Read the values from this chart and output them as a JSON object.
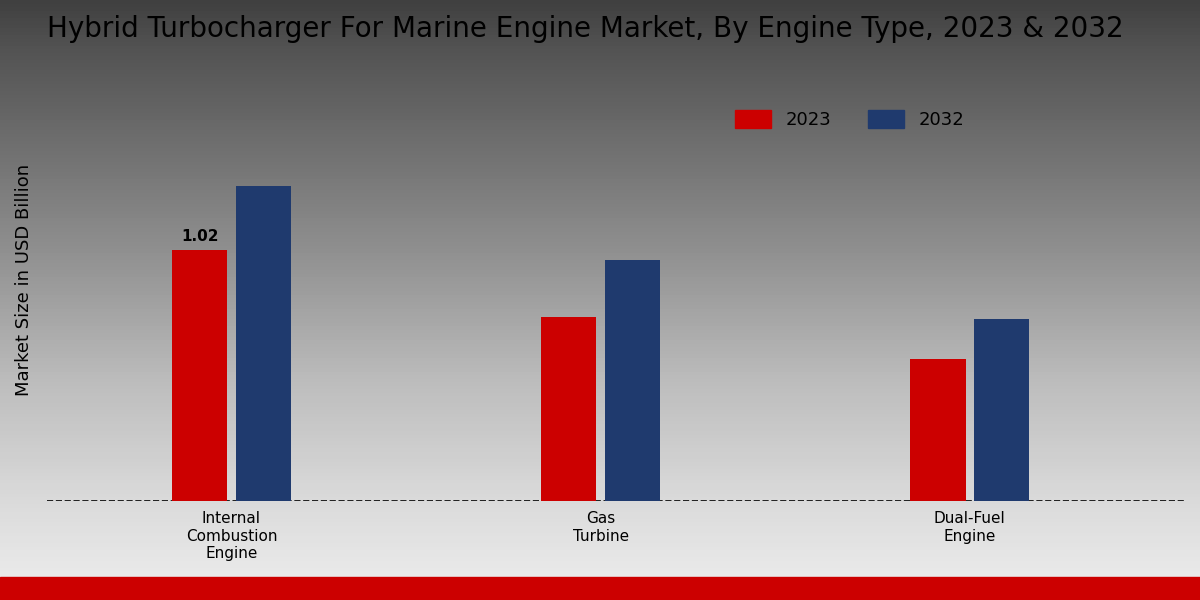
{
  "title": "Hybrid Turbocharger For Marine Engine Market, By Engine Type, 2023 & 2032",
  "ylabel": "Market Size in USD Billion",
  "categories": [
    "Internal\nCombustion\nEngine",
    "Gas\nTurbine",
    "Dual-Fuel\nEngine"
  ],
  "values_2023": [
    1.02,
    0.75,
    0.58
  ],
  "values_2032": [
    1.28,
    0.98,
    0.74
  ],
  "color_2023": "#cc0000",
  "color_2032": "#1f3a6e",
  "bar_width": 0.18,
  "annotation_text": "1.02",
  "annotation_category_idx": 0,
  "background_top": "#f0f0f0",
  "background_bottom": "#c8c8c8",
  "legend_labels": [
    "2023",
    "2032"
  ],
  "ylim": [
    0,
    1.8
  ],
  "title_fontsize": 20,
  "axis_label_fontsize": 13,
  "tick_label_fontsize": 11,
  "legend_fontsize": 13,
  "bottom_bar_color": "#cc0000",
  "x_positions": [
    0.22,
    0.5,
    0.78
  ]
}
